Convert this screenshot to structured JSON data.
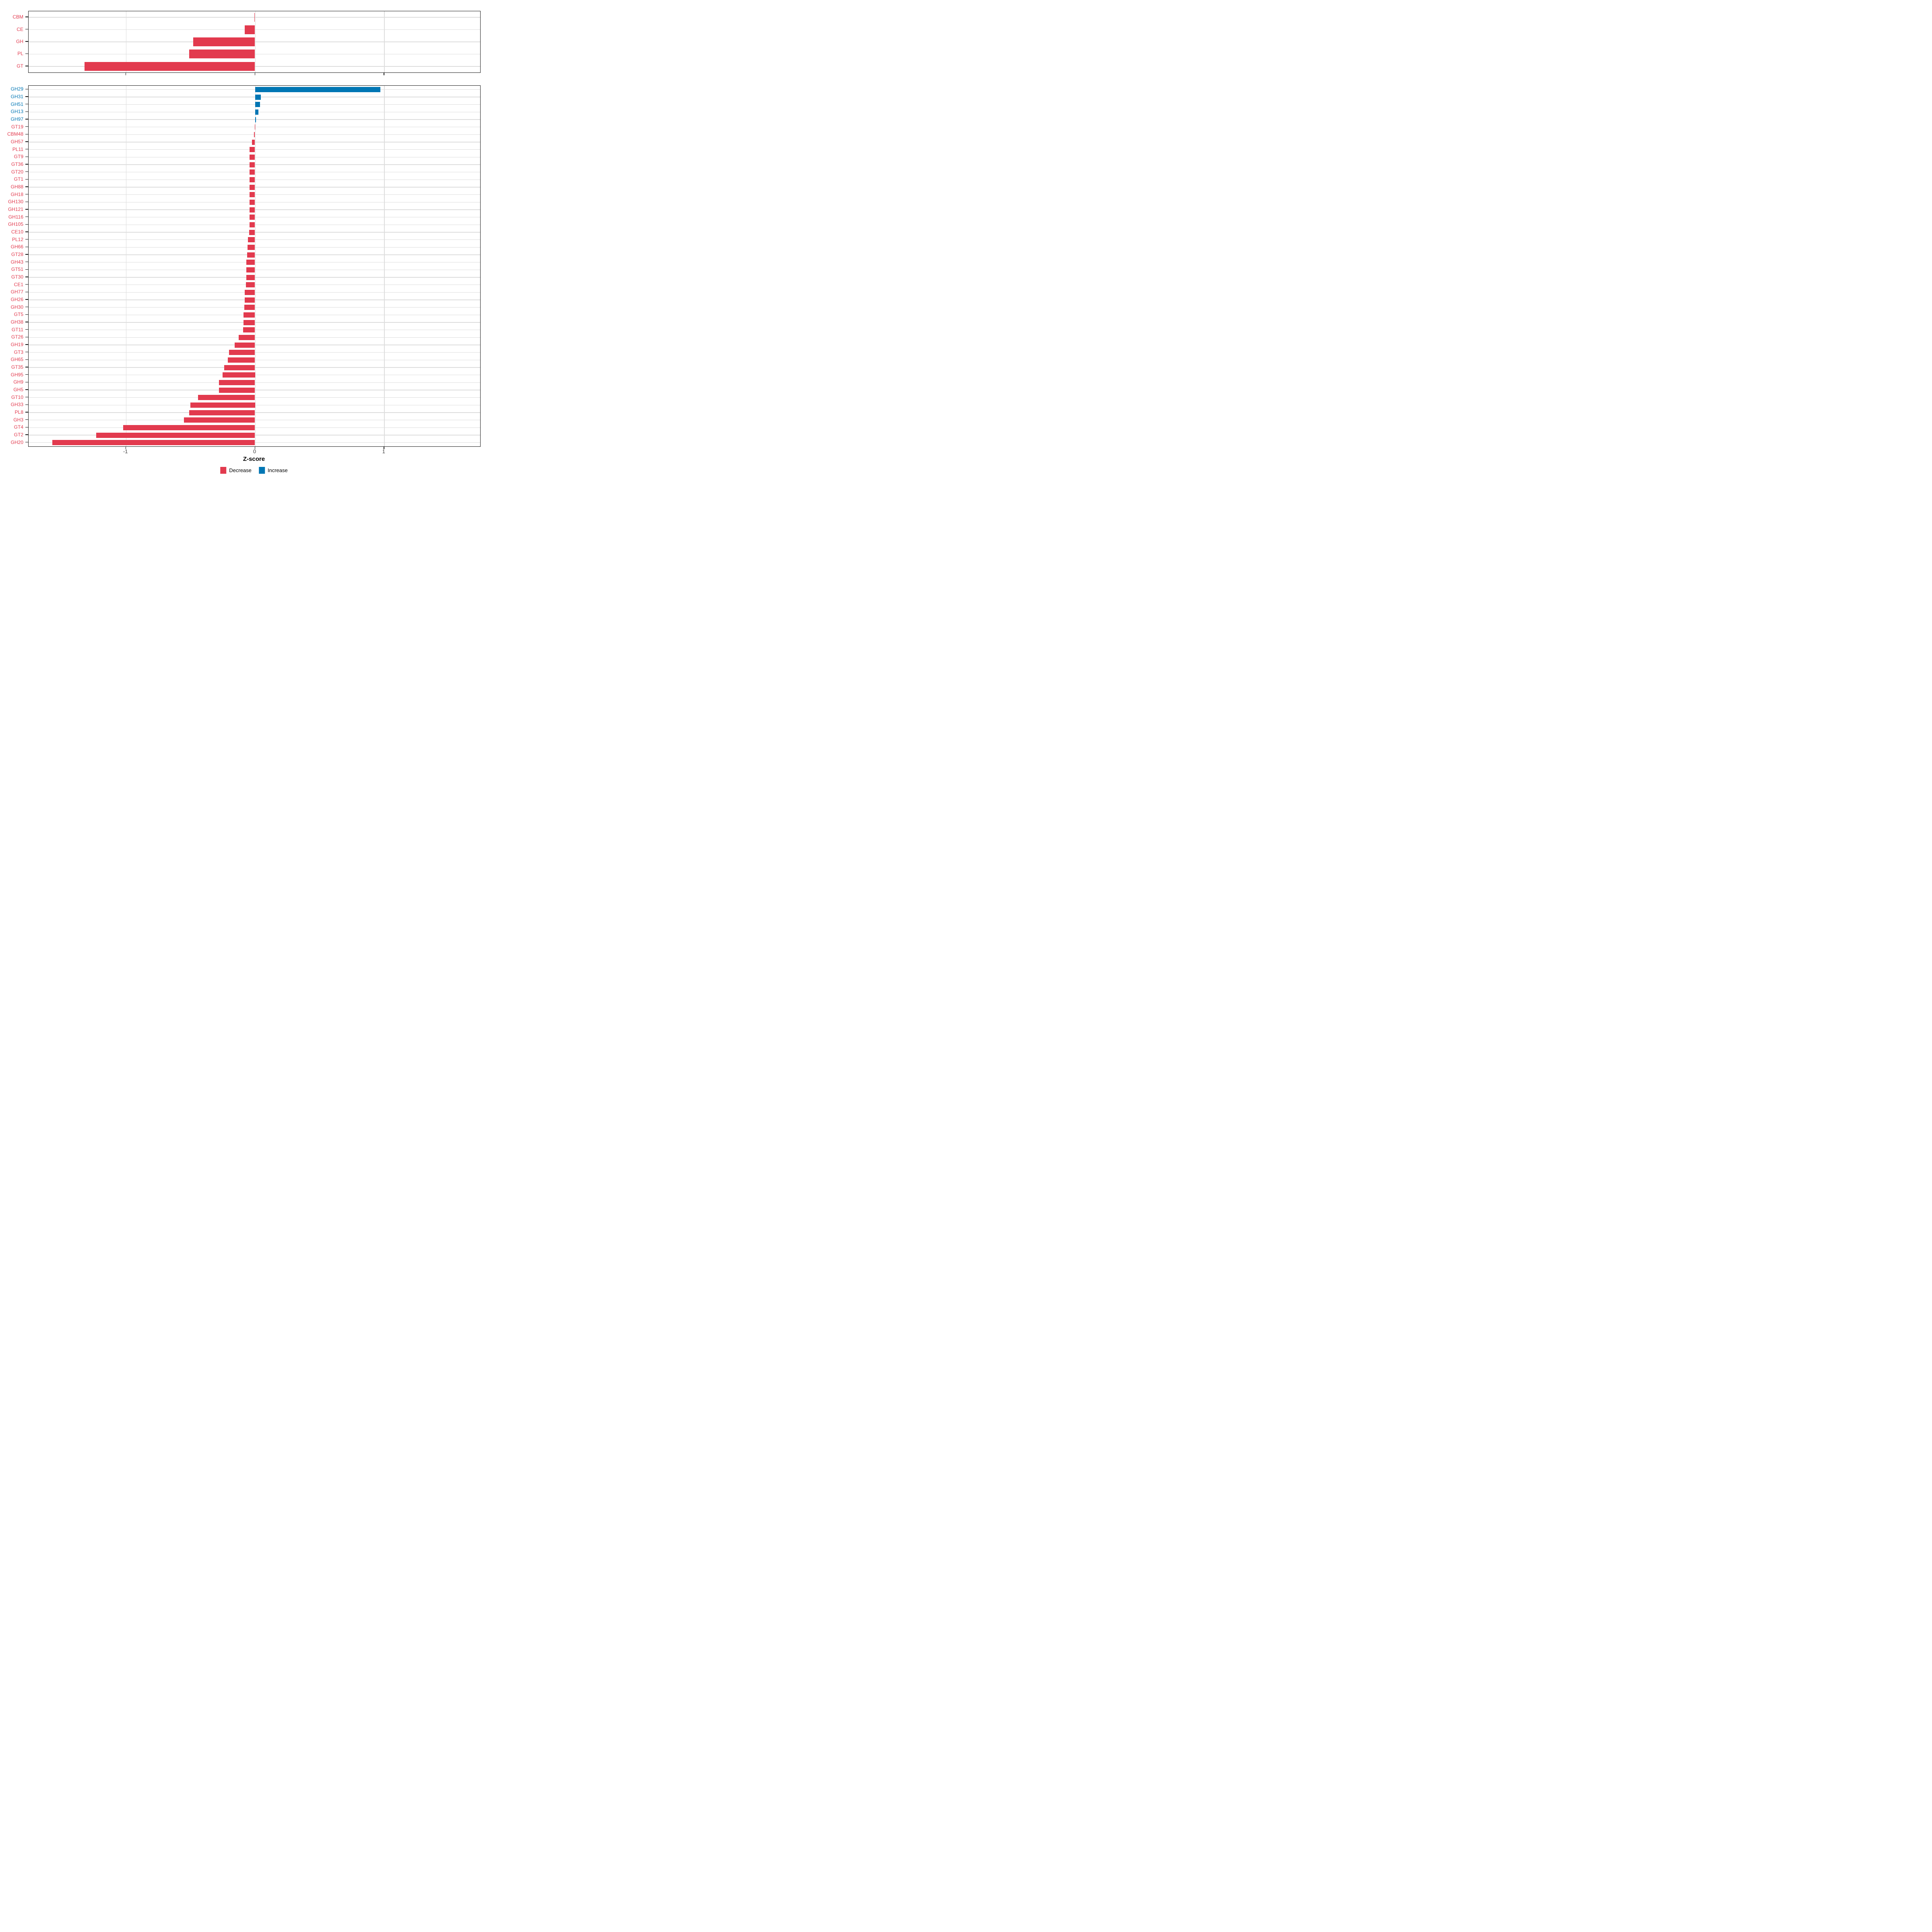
{
  "figure": {
    "background": "#ffffff"
  },
  "axis": {
    "xlabel": "Z-score",
    "tick_labels": [
      "-1",
      "0",
      "1"
    ],
    "tick_values": [
      -1,
      0,
      1
    ],
    "xlim": [
      -1.75,
      1.75
    ],
    "grid": "on"
  },
  "colors": {
    "decrease": "#E23A4E",
    "increase": "#0076B4",
    "gridline": "#dddddd",
    "panel_border": "#1a1a1a",
    "tick_text": "#404040"
  },
  "legend": {
    "position": "bottom-center",
    "items": [
      {
        "label": "Decrease",
        "color": "#E23A4E"
      },
      {
        "label": "Increase",
        "color": "#0076B4"
      }
    ]
  },
  "chart_data": [
    {
      "id": "cazyme-classes",
      "type": "bar",
      "orientation": "horizontal",
      "title": "",
      "xlabel": "Z-score",
      "xlim": [
        -1.75,
        1.75
      ],
      "categories": [
        "CBM",
        "CE",
        "GH",
        "PL",
        "GT"
      ],
      "values": [
        -0.006,
        -0.078,
        -0.48,
        -0.51,
        -1.32
      ],
      "directions": [
        "decrease",
        "decrease",
        "decrease",
        "decrease",
        "decrease"
      ]
    },
    {
      "id": "cazyme-families",
      "type": "bar",
      "orientation": "horizontal",
      "title": "",
      "xlabel": "Z-score",
      "xlim": [
        -1.75,
        1.75
      ],
      "categories": [
        "GH29",
        "GH31",
        "GH51",
        "GH13",
        "GH97",
        "GT19",
        "CBM48",
        "GH57",
        "PL11",
        "GT9",
        "GT36",
        "GT20",
        "GT1",
        "GH88",
        "GH18",
        "GH130",
        "GH121",
        "GH116",
        "GH105",
        "CE10",
        "PL12",
        "GH66",
        "GT28",
        "GH43",
        "GT51",
        "GT30",
        "CE1",
        "GH77",
        "GH26",
        "GH30",
        "GT5",
        "GH38",
        "GT11",
        "GT26",
        "GH19",
        "GT3",
        "GH65",
        "GT35",
        "GH95",
        "GH9",
        "GH5",
        "GT10",
        "GH33",
        "PL8",
        "GH3",
        "GT4",
        "GT2",
        "GH20"
      ],
      "values": [
        0.97,
        0.044,
        0.038,
        0.026,
        0.009,
        -0.002,
        -0.007,
        -0.023,
        -0.042,
        -0.042,
        -0.042,
        -0.042,
        -0.042,
        -0.043,
        -0.043,
        -0.043,
        -0.043,
        -0.043,
        -0.043,
        -0.044,
        -0.055,
        -0.058,
        -0.06,
        -0.066,
        -0.067,
        -0.068,
        -0.069,
        -0.078,
        -0.078,
        -0.084,
        -0.089,
        -0.089,
        -0.092,
        -0.127,
        -0.157,
        -0.2,
        -0.21,
        -0.24,
        -0.25,
        -0.28,
        -0.28,
        -0.44,
        -0.5,
        -0.51,
        -0.55,
        -1.02,
        -1.23,
        -1.57
      ],
      "directions": [
        "increase",
        "increase",
        "increase",
        "increase",
        "increase",
        "decrease",
        "decrease",
        "decrease",
        "decrease",
        "decrease",
        "decrease",
        "decrease",
        "decrease",
        "decrease",
        "decrease",
        "decrease",
        "decrease",
        "decrease",
        "decrease",
        "decrease",
        "decrease",
        "decrease",
        "decrease",
        "decrease",
        "decrease",
        "decrease",
        "decrease",
        "decrease",
        "decrease",
        "decrease",
        "decrease",
        "decrease",
        "decrease",
        "decrease",
        "decrease",
        "decrease",
        "decrease",
        "decrease",
        "decrease",
        "decrease",
        "decrease",
        "decrease",
        "decrease",
        "decrease",
        "decrease",
        "decrease",
        "decrease",
        "decrease"
      ]
    }
  ]
}
